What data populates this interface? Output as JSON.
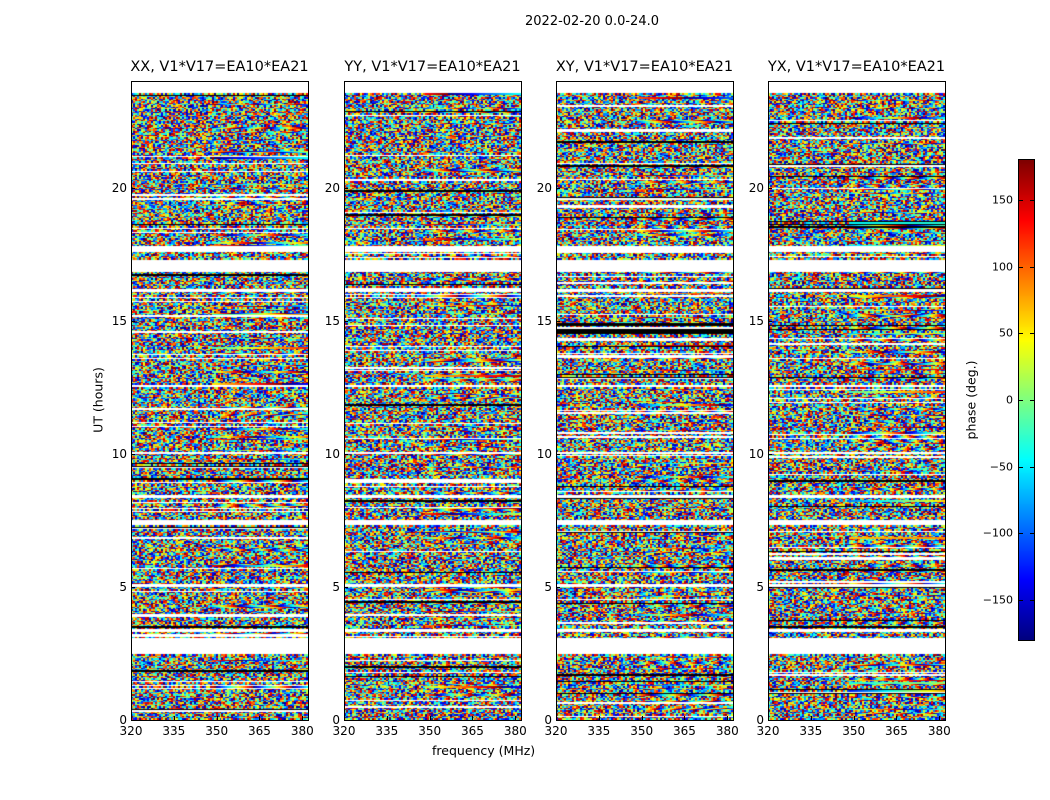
{
  "chart_data": {
    "type": "heatmap",
    "title": "2022-02-20 0.0-24.0",
    "xlabel": "frequency (MHz)",
    "ylabel": "UT (hours)",
    "xlim": [
      320,
      382
    ],
    "ylim": [
      0,
      24
    ],
    "xticks": [
      "320",
      "335",
      "350",
      "365",
      "380"
    ],
    "xtick_values": [
      320,
      335,
      350,
      365,
      380
    ],
    "yticks": [
      "0",
      "5",
      "10",
      "15",
      "20"
    ],
    "ytick_values": [
      0,
      5,
      10,
      15,
      20
    ],
    "panels": [
      {
        "title": "XX, V1*V17=EA10*EA21"
      },
      {
        "title": "YY, V1*V17=EA10*EA21"
      },
      {
        "title": "XY, V1*V17=EA10*EA21"
      },
      {
        "title": "YX, V1*V17=EA10*EA21"
      }
    ],
    "colorbar": {
      "label": "phase (deg.)",
      "colormap": "jet",
      "range": [
        -180,
        180
      ],
      "ticks": [
        "150",
        "100",
        "50",
        "0",
        "−50",
        "−100",
        "−150"
      ],
      "tick_values": [
        150,
        100,
        50,
        0,
        -50,
        -100,
        -150
      ]
    },
    "flagged_hours": [
      [
        2.45,
        3.05
      ],
      [
        3.3,
        3.4
      ],
      [
        5.0,
        5.1
      ],
      [
        7.3,
        7.5
      ],
      [
        8.35,
        8.45
      ],
      [
        10.0,
        10.05
      ],
      [
        12.5,
        12.6
      ],
      [
        16.1,
        16.2
      ],
      [
        16.85,
        17.3
      ],
      [
        17.6,
        17.8
      ],
      [
        23.55,
        24.0
      ]
    ]
  }
}
